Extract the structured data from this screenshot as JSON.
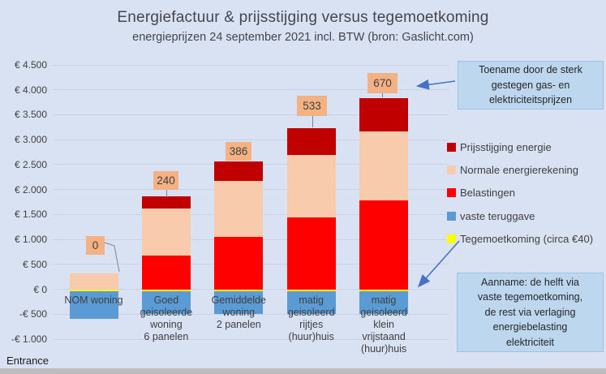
{
  "brand": "Entrance",
  "colors": {
    "background": "#D9E2F3",
    "grid": "#C9D2E4",
    "text": "#404040",
    "arrow": "#4472C4",
    "data_label_fill": "#F4B183",
    "annotation_fill": "#BDD7EE",
    "annotation_border": "#9CC2E5",
    "prijsstijging": "#C00000",
    "normale_energierekening": "#F8CBAD",
    "belastingen": "#FF0000",
    "vaste_teruggave": "#5B9BD5",
    "tegemoetkoming": "#FFFF00"
  },
  "chart_data": {
    "type": "bar",
    "stacked": true,
    "title": "Energiefactuur & prijsstijging versus tegemoetkoming",
    "subtitle": "energieprijzen 24 september 2021 incl. BTW (bron: Gaslicht.com)",
    "categories": [
      "NOM woning",
      "Goed geisoleerde woning 6 panelen",
      "Gemiddelde woning 2 panelen",
      "matig geisoleerd rijtjes (huur)huis",
      "matig geisoleerd klein vrijstaand (huur)huis"
    ],
    "category_lines": [
      [
        "NOM woning"
      ],
      [
        "Goed",
        "geisoleerde",
        "woning",
        "6 panelen"
      ],
      [
        "Gemiddelde",
        "woning",
        "2 panelen"
      ],
      [
        "matig",
        "geisoleerd",
        "rijtjes",
        "(huur)huis"
      ],
      [
        "matig",
        "geisoleerd",
        "klein",
        "vrijstaand",
        "(huur)huis"
      ]
    ],
    "series": [
      {
        "name": "Prijsstijging energie",
        "color": "#C00000",
        "values": [
          0,
          240,
          386,
          533,
          670
        ]
      },
      {
        "name": "Normale energierekening",
        "color": "#F8CBAD",
        "values": [
          320,
          950,
          1120,
          1250,
          1380
        ]
      },
      {
        "name": "Belastingen",
        "color": "#FF0000",
        "values": [
          0,
          670,
          1050,
          1440,
          1780
        ]
      },
      {
        "name": "vaste teruggave",
        "color": "#5B9BD5",
        "values": [
          -550,
          -450,
          -450,
          -450,
          -450
        ]
      },
      {
        "name": "Tegemoetkoming  (circa €40)",
        "color": "#FFFF00",
        "values": [
          -40,
          -40,
          -40,
          -40,
          -40
        ]
      }
    ],
    "data_labels": [
      "0",
      "240",
      "386",
      "533",
      "670"
    ],
    "ylim": [
      -1000,
      4500
    ],
    "ytick_step": 500,
    "ytick_labels": [
      "€ 4.500",
      "€ 4.000",
      "€ 3.500",
      "€ 3.000",
      "€ 2.500",
      "€ 2.000",
      "€ 1.500",
      "€ 1.000",
      "€ 500",
      "€ 0",
      "-€ 500",
      "-€ 1.000"
    ],
    "grid": true,
    "legend_position": "right"
  },
  "annotations": {
    "top_box": {
      "text": "Toename door de sterk gestegen gas- en elektriciteitsprijzen",
      "lines": [
        "Toename door de sterk",
        "gestegen gas- en",
        "elektriciteitsprijzen"
      ]
    },
    "bottom_box": {
      "text": "Aanname: de helft via vaste tegemoetkoming, de rest via verlaging energiebelasting elektriciteit",
      "lines": [
        "Aanname: de helft via",
        "vaste tegemoetkoming,",
        "de rest via verlaging",
        "energiebelasting",
        "elektriciteit"
      ]
    }
  }
}
